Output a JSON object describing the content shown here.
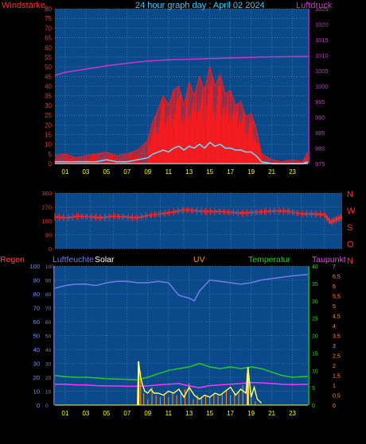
{
  "colors": {
    "background": "#000000",
    "plot_bg": "#0b4a8a",
    "grid": "#6f8fb8",
    "windstaerke": "#ff2a2a",
    "luftdruck": "#cc33cc",
    "title": "#33ccff",
    "wind_gust": "#ff1a1a",
    "wind_avg": "#66ddff",
    "direction": "#ff2a2a",
    "humidity": "#6f7fe6",
    "solar": "#ffff66",
    "uv": "#ff8c1a",
    "temperature": "#22cc22",
    "dewpoint": "#ff33ff",
    "rain": "#ff4444"
  },
  "chart_data": [
    {
      "type": "line",
      "title": "24 hour graph day : April 02 2024",
      "left_axis_label": "Windstärke",
      "right_axis_label": "Luftdruck",
      "x_ticks": [
        "01",
        "03",
        "05",
        "07",
        "09",
        "11",
        "13",
        "15",
        "17",
        "19",
        "21",
        "23"
      ],
      "xlim": [
        0,
        24.5
      ],
      "y_left_ticks": [
        "0",
        "5",
        "10",
        "15",
        "20",
        "25",
        "30",
        "35",
        "40",
        "45",
        "50",
        "55",
        "60",
        "65",
        "70",
        "75",
        "80"
      ],
      "y_left_lim": [
        0,
        80
      ],
      "y_right_ticks": [
        "975",
        "980",
        "985",
        "990",
        "995",
        "1000",
        "1005",
        "1010",
        "1015",
        "1020",
        "1025"
      ],
      "y_right_lim": [
        975,
        1025
      ],
      "grid": true,
      "series": [
        {
          "axis": "right",
          "x": [
            0,
            1,
            2,
            3,
            4,
            5,
            6,
            7,
            8,
            9,
            10,
            11,
            12,
            13,
            14,
            15,
            16,
            17,
            18,
            19,
            20,
            21,
            22,
            23,
            24.5
          ],
          "values": [
            1003.5,
            1004.5,
            1005.0,
            1005.5,
            1006.0,
            1006.6,
            1007.0,
            1007.4,
            1007.8,
            1008.1,
            1008.3,
            1008.5,
            1008.6,
            1008.7,
            1008.8,
            1008.9,
            1009.0,
            1009.1,
            1009.2,
            1009.3,
            1009.4,
            1009.5,
            1009.5,
            1009.6,
            1009.6
          ]
        },
        {
          "axis": "left",
          "x": [
            0,
            1,
            2,
            3,
            4,
            5,
            6,
            7,
            8,
            9,
            9.5,
            10,
            10.5,
            11,
            11.5,
            12,
            12.5,
            13,
            13.5,
            14,
            14.5,
            15,
            15.5,
            16,
            16.5,
            17,
            17.5,
            18,
            18.5,
            19,
            19.5,
            20,
            21,
            22,
            23,
            24,
            24.5
          ],
          "values": [
            4,
            5,
            3,
            4,
            5,
            6,
            4,
            5,
            7,
            12,
            22,
            28,
            35,
            30,
            38,
            40,
            30,
            42,
            35,
            45,
            38,
            50,
            40,
            46,
            36,
            38,
            30,
            32,
            24,
            26,
            18,
            5,
            2,
            1,
            2,
            1,
            6
          ]
        },
        {
          "axis": "left",
          "x": [
            0,
            1,
            2,
            3,
            4,
            5,
            6,
            7,
            8,
            9,
            9.5,
            10,
            10.5,
            11,
            11.5,
            12,
            12.5,
            13,
            13.5,
            14,
            14.5,
            15,
            15.5,
            16,
            16.5,
            17,
            17.5,
            18,
            18.5,
            19,
            19.5,
            20,
            21,
            22,
            23,
            24,
            24.5
          ],
          "values": [
            1,
            1,
            1,
            1,
            1,
            2,
            1,
            1,
            2,
            3,
            5,
            6,
            7,
            6,
            8,
            9,
            7,
            9,
            8,
            10,
            8,
            11,
            9,
            10,
            8,
            8,
            7,
            7,
            6,
            6,
            4,
            1,
            0,
            0,
            0,
            0,
            1
          ]
        }
      ]
    },
    {
      "type": "line",
      "title": "",
      "right_axis_label": "NWSON",
      "right_labels": [
        "N",
        "W",
        "S",
        "O",
        "N"
      ],
      "x_ticks": [],
      "xlim": [
        0,
        24.5
      ],
      "y_ticks": [
        "0",
        "90",
        "180",
        "270",
        "360"
      ],
      "ylim": [
        0,
        360
      ],
      "grid": true,
      "series": [
        {
          "x": [
            0,
            1,
            2,
            3,
            4,
            5,
            6,
            7,
            8,
            9,
            10,
            11,
            12,
            13,
            14,
            15,
            16,
            17,
            18,
            19,
            20,
            21,
            22,
            23,
            23.5,
            24,
            24.5
          ],
          "values": [
            205,
            200,
            210,
            205,
            200,
            210,
            205,
            200,
            215,
            225,
            235,
            250,
            245,
            240,
            240,
            235,
            230,
            235,
            240,
            245,
            240,
            225,
            225,
            220,
            170,
            190,
            205
          ]
        }
      ]
    },
    {
      "type": "line",
      "title": "",
      "labels": [
        "Regen",
        "Luftfeuchte",
        "Solar",
        "UV",
        "Temperatur",
        "Taupunkt"
      ],
      "x_ticks": [
        "01",
        "03",
        "05",
        "07",
        "09",
        "11",
        "13",
        "15",
        "17",
        "19",
        "21",
        "23"
      ],
      "xlim": [
        0,
        24.5
      ],
      "y_left_ticks": [
        "0",
        "10",
        "20",
        "30",
        "40",
        "50",
        "60",
        "70",
        "80",
        "90",
        "100"
      ],
      "y_left_lim": [
        0,
        100
      ],
      "y_right_ticks": [
        "0",
        "5",
        "10",
        "15",
        "20",
        "25",
        "30",
        "35",
        "40"
      ],
      "y_right_lim": [
        0,
        40
      ],
      "uv_ticks": [
        "0",
        "0,5",
        "1",
        "1,5",
        "2",
        "2,5",
        "3",
        "3,5",
        "4",
        "4,5",
        "5",
        "5,5",
        "6",
        "6,5",
        "7"
      ],
      "uv_lim": [
        0,
        7
      ],
      "grid": true,
      "series": [
        {
          "name": "Luftfeuchte",
          "x": [
            0,
            1,
            2,
            3,
            4,
            5,
            6,
            7,
            8,
            9,
            10,
            11,
            12,
            13,
            13.5,
            14,
            15,
            16,
            17,
            18,
            19,
            20,
            21,
            22,
            23,
            24.5
          ],
          "values": [
            84,
            86,
            87,
            87,
            86,
            88,
            89,
            89,
            88,
            88,
            89,
            88,
            79,
            77,
            75,
            82,
            90,
            89,
            88,
            87,
            88,
            90,
            91,
            92,
            93,
            94
          ]
        },
        {
          "name": "Temperatur",
          "x": [
            0,
            1,
            2,
            3,
            4,
            5,
            6,
            7,
            8,
            9,
            10,
            11,
            12,
            13,
            14,
            15,
            16,
            17,
            18,
            19,
            20,
            21,
            22,
            23,
            24.5
          ],
          "values": [
            8.5,
            8.2,
            8.0,
            8.0,
            7.8,
            7.6,
            7.5,
            7.4,
            7.3,
            8.0,
            9.0,
            10.0,
            10.5,
            11.0,
            12.0,
            11.0,
            10.5,
            11.0,
            10.5,
            11.0,
            10.5,
            9.5,
            8.5,
            8.0,
            8.3
          ]
        },
        {
          "name": "Taupunkt",
          "x": [
            0,
            1,
            2,
            3,
            4,
            5,
            6,
            7,
            8,
            9,
            10,
            11,
            12,
            13,
            14,
            15,
            16,
            17,
            18,
            19,
            20,
            21,
            22,
            23,
            24.5
          ],
          "values": [
            6.0,
            6.0,
            5.8,
            5.8,
            5.6,
            5.5,
            5.5,
            5.4,
            5.4,
            5.5,
            5.8,
            6.0,
            6.2,
            5.5,
            5.0,
            5.6,
            5.8,
            6.0,
            6.2,
            6.5,
            6.4,
            6.2,
            6.0,
            5.9,
            6.0
          ]
        },
        {
          "name": "Solar",
          "x": [
            8.0,
            8.1,
            8.3,
            8.5,
            8.7,
            9.0,
            9.3,
            9.6,
            10.0,
            10.5,
            11.0,
            11.5,
            12.0,
            12.5,
            13.0,
            13.5,
            14.0,
            14.5,
            15.0,
            15.5,
            16.0,
            16.5,
            17.0,
            17.5,
            18.0,
            18.5,
            18.7,
            19.0,
            19.3,
            19.6,
            20.0
          ],
          "values": [
            0,
            2.2,
            1.4,
            1.0,
            0.7,
            0.6,
            0.8,
            0.6,
            0.6,
            0.5,
            0.7,
            0.6,
            0.8,
            0.4,
            0.9,
            0.5,
            0.3,
            0.5,
            0.4,
            0.6,
            0.5,
            0.7,
            0.9,
            0.5,
            0.8,
            0.6,
            1.9,
            0.4,
            0.9,
            0.3,
            0.1
          ]
        },
        {
          "name": "UV",
          "x": [
            8,
            8.3,
            8.6,
            9,
            9.4,
            9.8,
            10.2,
            10.6,
            11,
            11.4,
            11.8,
            12.2,
            12.6,
            13,
            13.4,
            13.8,
            14.2,
            14.6,
            15,
            15.4,
            15.8,
            16.2,
            16.6,
            17,
            17.4,
            17.8,
            18.2,
            18.6,
            19,
            19.4
          ],
          "values": [
            0.8,
            1.7,
            0.6,
            0.3,
            0.9,
            0.5,
            0.4,
            0.5,
            0.4,
            0.6,
            0.5,
            0.7,
            0.8,
            1.1,
            0.3,
            0.5,
            0.4,
            0.5,
            0.4,
            0.6,
            0.5,
            0.6,
            0.7,
            0.5,
            0.6,
            0.7,
            1.0,
            1.6,
            0.6,
            0.2
          ]
        },
        {
          "name": "Regen",
          "x": [
            0,
            24.5
          ],
          "values": [
            0,
            0
          ]
        }
      ]
    }
  ]
}
